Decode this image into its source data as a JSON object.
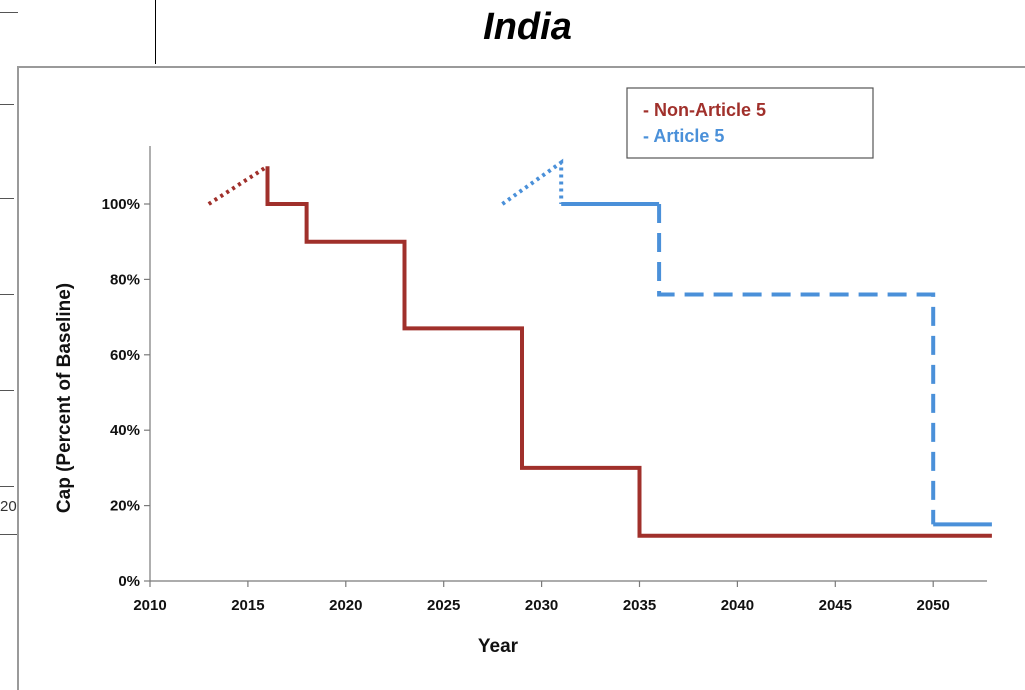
{
  "page": {
    "title": "India",
    "fragment_text": "20"
  },
  "chart_data": {
    "type": "line",
    "title": "India",
    "xlabel": "Year",
    "ylabel": "Cap (Percent of Baseline)",
    "xlim": [
      2010,
      2053
    ],
    "ylim": [
      0,
      115
    ],
    "x_ticks": [
      "2010",
      "2015",
      "2020",
      "2025",
      "2030",
      "2035",
      "2040",
      "2045",
      "2050"
    ],
    "y_ticks": [
      "0%",
      "20%",
      "40%",
      "60%",
      "80%",
      "100%"
    ],
    "x_tick_values": [
      2010,
      2015,
      2020,
      2025,
      2030,
      2035,
      2040,
      2045,
      2050
    ],
    "y_tick_values": [
      0,
      20,
      40,
      60,
      80,
      100
    ],
    "legend_position": "top-right",
    "legend": [
      "- Non-Article 5",
      "- Article 5"
    ],
    "colors": {
      "non_article_5": "#A0302B",
      "article_5": "#4A90D9"
    },
    "series": [
      {
        "name": "Non-Article 5",
        "color": "#A0302B",
        "segments": [
          {
            "style": "dotted",
            "x": [
              2013,
              2016
            ],
            "y": [
              100,
              110
            ]
          },
          {
            "style": "solid",
            "x": [
              2016,
              2016,
              2018,
              2018,
              2023,
              2023,
              2029,
              2029,
              2035,
              2035,
              2053
            ],
            "y": [
              110,
              100,
              100,
              90,
              90,
              67,
              67,
              30,
              30,
              12,
              12
            ]
          }
        ]
      },
      {
        "name": "Article 5",
        "color": "#4A90D9",
        "segments": [
          {
            "style": "dotted",
            "x": [
              2028,
              2031,
              2031
            ],
            "y": [
              100,
              111,
              100
            ]
          },
          {
            "style": "solid",
            "x": [
              2031,
              2036
            ],
            "y": [
              100,
              100
            ]
          },
          {
            "style": "dashed",
            "x": [
              2036,
              2036,
              2050,
              2050
            ],
            "y": [
              100,
              76,
              76,
              15
            ]
          },
          {
            "style": "solid",
            "x": [
              2050,
              2053
            ],
            "y": [
              15,
              15
            ]
          }
        ]
      }
    ]
  }
}
